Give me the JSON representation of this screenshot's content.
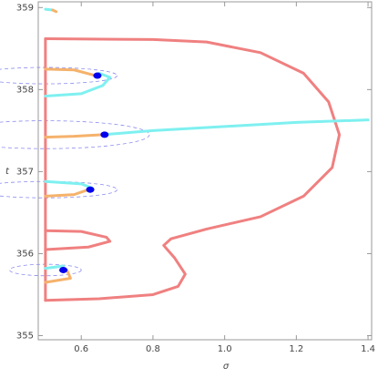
{
  "chart_data": {
    "type": "line",
    "xlabel": "σ",
    "ylabel": "t",
    "xlim": [
      0.48,
      1.41
    ],
    "ylim": [
      354.95,
      359.07
    ],
    "xticks": [
      0.6,
      0.8,
      {
        "value": 1,
        "label": "1.0"
      },
      1.2,
      1.4
    ],
    "yticks": [
      355,
      356,
      357,
      358,
      359
    ],
    "series": [
      {
        "color": "#f08080",
        "style": "line",
        "x": [
          0.5,
          0.8,
          0.95,
          1.1,
          1.22,
          1.29,
          1.32,
          1.3,
          1.22,
          1.1,
          0.95,
          0.85,
          0.83,
          0.86,
          0.89,
          0.87,
          0.8,
          0.65,
          0.5
        ],
        "values": [
          358.62,
          358.61,
          358.58,
          358.45,
          358.2,
          357.85,
          357.45,
          357.05,
          356.7,
          356.45,
          356.3,
          356.18,
          356.1,
          355.95,
          355.75,
          355.6,
          355.5,
          355.45,
          355.43
        ]
      },
      {
        "color": "#f08080",
        "style": "line",
        "x": [
          0.5,
          0.6,
          0.67,
          0.68,
          0.62,
          0.5
        ],
        "values": [
          356.28,
          356.27,
          356.2,
          356.15,
          356.08,
          356.05
        ]
      },
      {
        "color": "#f08080",
        "style": "line",
        "x": [
          0.5,
          0.5
        ],
        "values": [
          355.43,
          358.62
        ]
      },
      {
        "color": "#f5b26b",
        "style": "line",
        "x": [
          0.5,
          0.58,
          0.66
        ],
        "values": [
          357.42,
          357.43,
          357.45
        ]
      },
      {
        "color": "#7ff0f0",
        "style": "line",
        "x": [
          0.66,
          0.8,
          1.0,
          1.2,
          1.4
        ],
        "values": [
          357.45,
          357.5,
          357.55,
          357.6,
          357.63
        ]
      },
      {
        "color": "#f5b26b",
        "style": "line",
        "x": [
          0.5,
          0.58,
          0.64
        ],
        "values": [
          358.25,
          358.24,
          358.17
        ]
      },
      {
        "color": "#7ff0f0",
        "style": "line",
        "x": [
          0.5,
          0.6,
          0.66,
          0.68,
          0.65
        ],
        "values": [
          357.92,
          357.95,
          358.05,
          358.15,
          358.2
        ]
      },
      {
        "color": "#f5b26b",
        "style": "line",
        "x": [
          0.5,
          0.58,
          0.62
        ],
        "values": [
          356.7,
          356.72,
          356.78
        ]
      },
      {
        "color": "#7ff0f0",
        "style": "line",
        "x": [
          0.5,
          0.6,
          0.63
        ],
        "values": [
          356.88,
          356.85,
          356.8
        ]
      },
      {
        "color": "#7ff0f0",
        "style": "line",
        "x": [
          0.5,
          0.55
        ],
        "values": [
          355.82,
          355.85
        ]
      },
      {
        "color": "#f5b26b",
        "style": "line",
        "x": [
          0.5,
          0.57,
          0.56
        ],
        "values": [
          355.65,
          355.7,
          355.8
        ]
      },
      {
        "color": "#7ff0f0",
        "style": "line",
        "x": [
          0.5,
          0.52
        ],
        "values": [
          358.98,
          358.97
        ]
      },
      {
        "color": "#f5b26b",
        "style": "line",
        "x": [
          0.52,
          0.53
        ],
        "values": [
          358.97,
          358.95
        ]
      },
      {
        "color": "#0000ee",
        "style": "dots",
        "x": [
          0.645,
          0.665,
          0.625,
          0.55
        ],
        "values": [
          358.17,
          357.45,
          356.78,
          355.8
        ]
      }
    ],
    "ellipses": {
      "color": "#8c8cf0",
      "items": [
        {
          "cx": 0.5,
          "cy": 358.17,
          "rx": 0.2,
          "ry": 0.1
        },
        {
          "cx": 0.5,
          "cy": 357.45,
          "rx": 0.29,
          "ry": 0.17
        },
        {
          "cx": 0.5,
          "cy": 356.78,
          "rx": 0.2,
          "ry": 0.1
        },
        {
          "cx": 0.5,
          "cy": 355.8,
          "rx": 0.1,
          "ry": 0.07
        }
      ]
    }
  }
}
